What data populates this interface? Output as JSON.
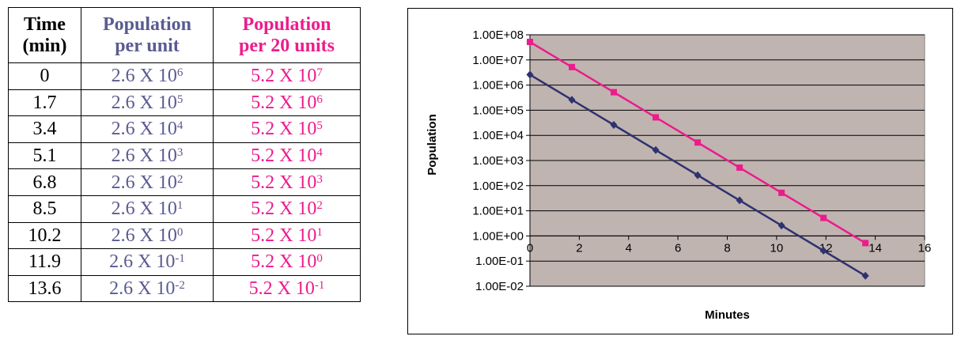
{
  "table": {
    "headers": [
      {
        "line1": "Time",
        "line2": "(min)"
      },
      {
        "line1": "Population",
        "line2": "per unit"
      },
      {
        "line1": "Population",
        "line2": "per 20 units"
      }
    ],
    "rows": [
      {
        "time": "0",
        "unit_base": "2.6 X 10",
        "unit_exp": "6",
        "u20_base": "5.2 X 10",
        "u20_exp": "7"
      },
      {
        "time": "1.7",
        "unit_base": "2.6 X 10",
        "unit_exp": "5",
        "u20_base": "5.2 X 10",
        "u20_exp": "6"
      },
      {
        "time": "3.4",
        "unit_base": "2.6 X 10",
        "unit_exp": "4",
        "u20_base": "5.2 X 10",
        "u20_exp": "5"
      },
      {
        "time": "5.1",
        "unit_base": "2.6 X 10",
        "unit_exp": "3",
        "u20_base": "5.2 X 10",
        "u20_exp": "4"
      },
      {
        "time": "6.8",
        "unit_base": "2.6 X 10",
        "unit_exp": "2",
        "u20_base": "5.2 X 10",
        "u20_exp": "3"
      },
      {
        "time": "8.5",
        "unit_base": "2.6 X 10",
        "unit_exp": "1",
        "u20_base": "5.2 X 10",
        "u20_exp": "2"
      },
      {
        "time": "10.2",
        "unit_base": "2.6 X 10",
        "unit_exp": "0",
        "u20_base": "5.2 X 10",
        "u20_exp": "1"
      },
      {
        "time": "11.9",
        "unit_base": "2.6 X 10",
        "unit_exp": "-1",
        "u20_base": "5.2 X 10",
        "u20_exp": "0"
      },
      {
        "time": "13.6",
        "unit_base": "2.6 X 10",
        "unit_exp": "-2",
        "u20_base": "5.2 X 10",
        "u20_exp": "-1"
      }
    ]
  },
  "colors": {
    "per_unit": "#5a5b91",
    "per_20_units": "#ec1c8c",
    "plot_background": "#c0b4b0"
  },
  "chart_data": {
    "type": "line",
    "xlabel": "Minutes",
    "ylabel": "Population",
    "xlim": [
      0,
      16
    ],
    "ylim": [
      0.01,
      100000000
    ],
    "yscale": "log",
    "grid": "horizontal",
    "legend": "none",
    "x_ticks": [
      "0",
      "2",
      "4",
      "6",
      "8",
      "10",
      "12",
      "14",
      "16"
    ],
    "y_ticks": [
      "1.00E+08",
      "1.00E+07",
      "1.00E+06",
      "1.00E+05",
      "1.00E+04",
      "1.00E+03",
      "1.00E+02",
      "1.00E+01",
      "1.00E+00",
      "1.00E-01",
      "1.00E-02"
    ],
    "x": [
      0,
      1.7,
      3.4,
      5.1,
      6.8,
      8.5,
      10.2,
      11.9,
      13.6
    ],
    "series": [
      {
        "values": [
          2600000,
          260000,
          26000,
          2600,
          260,
          26,
          2.6,
          0.26,
          0.026
        ],
        "color": "#2e3270",
        "marker": "diamond"
      },
      {
        "values": [
          52000000,
          5200000,
          520000,
          52000,
          5200,
          520,
          52,
          5.2,
          0.52
        ],
        "color": "#ec1c8c",
        "marker": "square"
      }
    ]
  }
}
